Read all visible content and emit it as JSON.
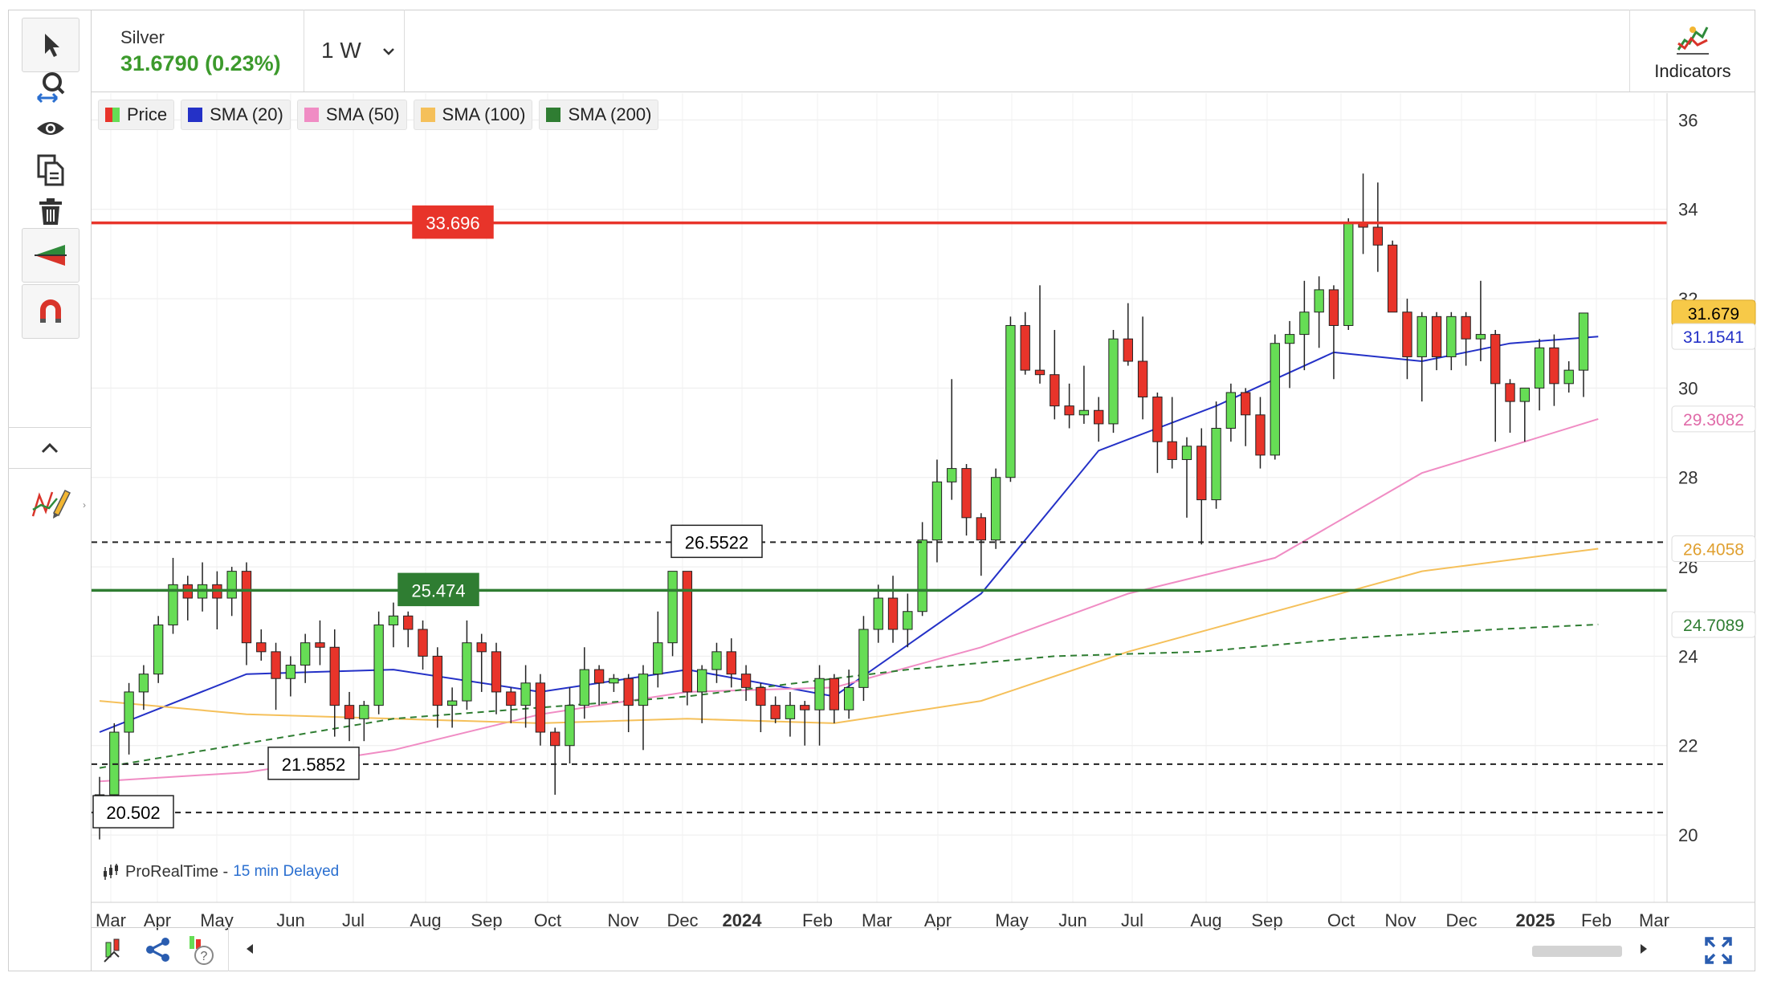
{
  "symbol": {
    "name": "Silver",
    "price_line": "31.6790 (0.23%)"
  },
  "timeframe": {
    "label": "1 W"
  },
  "indicators_button": {
    "label": "Indicators"
  },
  "tools": [
    "pointer-icon",
    "zoom-icon",
    "eye-icon",
    "copy-icon",
    "trash-icon",
    "chart-type-icon",
    "magnet-icon",
    "collapse-icon",
    "drawing-icon"
  ],
  "watermark": {
    "brand": "ProRealTime -",
    "delay": "15 min Delayed"
  },
  "colors": {
    "up": "#66dd55",
    "down": "#e8342a",
    "sma20": "#2431c7",
    "sma50": "#f08cc4",
    "sma100": "#f5c05a",
    "sma200": "#2f7d32",
    "resistance": "#e8342a",
    "support": "#2f7d32"
  },
  "chart_data": {
    "type": "candlestick",
    "ylim": [
      18.6,
      36.6
    ],
    "y_ticks": [
      20,
      22,
      24,
      26,
      28,
      30,
      32,
      34,
      36
    ],
    "x_labels": [
      "Mar",
      "Apr",
      "May",
      "Jun",
      "Jul",
      "Aug",
      "Sep",
      "Oct",
      "Nov",
      "Dec",
      "2024",
      "Feb",
      "Mar",
      "Apr",
      "May",
      "Jun",
      "Jul",
      "Aug",
      "Sep",
      "Oct",
      "Nov",
      "Dec",
      "2025",
      "Feb",
      "Mar"
    ],
    "legend": [
      {
        "label": "Price",
        "swatch": "price"
      },
      {
        "label": "SMA (20)",
        "color": "#2431c7"
      },
      {
        "label": "SMA (50)",
        "color": "#f08cc4"
      },
      {
        "label": "SMA (100)",
        "color": "#f5c05a"
      },
      {
        "label": "SMA (200)",
        "color": "#2f7d32"
      }
    ],
    "horizontal_lines": [
      {
        "value": 33.696,
        "label": "33.696",
        "style": "solid",
        "color": "#e8342a"
      },
      {
        "value": 25.474,
        "label": "25.474",
        "style": "solid",
        "color": "#2f7d32"
      },
      {
        "value": 26.5522,
        "label": "26.5522",
        "style": "dashed",
        "color": "#222222"
      },
      {
        "value": 21.5852,
        "label": "21.5852",
        "style": "dashed",
        "color": "#222222"
      },
      {
        "value": 20.502,
        "label": "20.502",
        "style": "dashed",
        "color": "#222222"
      }
    ],
    "axis_badges": [
      {
        "value": 31.679,
        "label": "31.679",
        "bg": "#f7c948",
        "fg": "#000000"
      },
      {
        "value": 31.1541,
        "label": "31.1541",
        "bg": "#ffffff",
        "fg": "#2431c7"
      },
      {
        "value": 29.3082,
        "label": "29.3082",
        "bg": "#ffffff",
        "fg": "#e06aa8"
      },
      {
        "value": 26.4058,
        "label": "26.4058",
        "bg": "#ffffff",
        "fg": "#e0a030"
      },
      {
        "value": 24.7089,
        "label": "24.7089",
        "bg": "#ffffff",
        "fg": "#2f7d32"
      }
    ],
    "series": [
      {
        "name": "Price",
        "type": "ohlc",
        "values": [
          [
            20.5,
            21.3,
            19.9,
            20.9
          ],
          [
            20.9,
            22.5,
            20.7,
            22.3
          ],
          [
            22.3,
            23.4,
            21.8,
            23.2
          ],
          [
            23.2,
            23.8,
            22.8,
            23.6
          ],
          [
            23.6,
            24.9,
            23.4,
            24.7
          ],
          [
            24.7,
            26.2,
            24.5,
            25.6
          ],
          [
            25.6,
            25.8,
            24.8,
            25.3
          ],
          [
            25.3,
            26.1,
            25.0,
            25.6
          ],
          [
            25.6,
            25.9,
            24.6,
            25.3
          ],
          [
            25.3,
            26.0,
            24.9,
            25.9
          ],
          [
            25.9,
            26.1,
            23.8,
            24.3
          ],
          [
            24.3,
            24.6,
            23.9,
            24.1
          ],
          [
            24.1,
            24.3,
            22.8,
            23.5
          ],
          [
            23.5,
            24.0,
            23.1,
            23.8
          ],
          [
            23.8,
            24.5,
            23.4,
            24.3
          ],
          [
            24.3,
            24.8,
            23.8,
            24.2
          ],
          [
            24.2,
            24.6,
            22.2,
            22.9
          ],
          [
            22.9,
            23.2,
            22.1,
            22.6
          ],
          [
            22.6,
            23.0,
            22.1,
            22.9
          ],
          [
            22.9,
            25.0,
            22.7,
            24.7
          ],
          [
            24.7,
            25.2,
            24.2,
            24.9
          ],
          [
            24.9,
            25.0,
            24.2,
            24.6
          ],
          [
            24.6,
            24.8,
            23.7,
            24.0
          ],
          [
            24.0,
            24.2,
            22.4,
            22.9
          ],
          [
            22.9,
            23.3,
            22.4,
            23.0
          ],
          [
            23.0,
            24.8,
            22.8,
            24.3
          ],
          [
            24.3,
            24.5,
            23.2,
            24.1
          ],
          [
            24.1,
            24.3,
            22.7,
            23.2
          ],
          [
            23.2,
            23.3,
            22.5,
            22.9
          ],
          [
            22.9,
            23.8,
            22.4,
            23.4
          ],
          [
            23.4,
            23.6,
            22.0,
            22.3
          ],
          [
            22.3,
            22.4,
            20.9,
            22.0
          ],
          [
            22.0,
            23.3,
            21.6,
            22.9
          ],
          [
            22.9,
            24.2,
            22.6,
            23.7
          ],
          [
            23.7,
            23.8,
            22.9,
            23.4
          ],
          [
            23.4,
            23.6,
            23.2,
            23.5
          ],
          [
            23.5,
            23.6,
            22.3,
            22.9
          ],
          [
            22.9,
            23.8,
            21.9,
            23.6
          ],
          [
            23.6,
            25.0,
            23.3,
            24.3
          ],
          [
            24.3,
            25.9,
            24.0,
            25.9
          ],
          [
            25.9,
            25.9,
            22.9,
            23.2
          ],
          [
            23.2,
            23.8,
            22.5,
            23.7
          ],
          [
            23.7,
            24.3,
            23.4,
            24.1
          ],
          [
            24.1,
            24.4,
            23.3,
            23.6
          ],
          [
            23.6,
            23.8,
            23.0,
            23.3
          ],
          [
            23.3,
            23.4,
            22.3,
            22.9
          ],
          [
            22.9,
            23.1,
            22.5,
            22.6
          ],
          [
            22.6,
            23.2,
            22.2,
            22.9
          ],
          [
            22.9,
            23.0,
            22.0,
            22.8
          ],
          [
            22.8,
            23.8,
            22.0,
            23.5
          ],
          [
            23.5,
            23.6,
            22.5,
            22.8
          ],
          [
            22.8,
            23.7,
            22.6,
            23.3
          ],
          [
            23.3,
            24.9,
            23.0,
            24.6
          ],
          [
            24.6,
            25.6,
            24.3,
            25.3
          ],
          [
            25.3,
            25.8,
            24.3,
            24.6
          ],
          [
            24.6,
            25.4,
            24.2,
            25.0
          ],
          [
            25.0,
            27.0,
            24.9,
            26.6
          ],
          [
            26.6,
            28.4,
            26.1,
            27.9
          ],
          [
            27.9,
            30.2,
            27.5,
            28.2
          ],
          [
            28.2,
            28.3,
            26.7,
            27.1
          ],
          [
            27.1,
            27.2,
            25.8,
            26.6
          ],
          [
            26.6,
            28.2,
            26.4,
            28.0
          ],
          [
            28.0,
            31.6,
            27.9,
            31.4
          ],
          [
            31.4,
            31.7,
            30.3,
            30.4
          ],
          [
            30.4,
            32.3,
            30.1,
            30.3
          ],
          [
            30.3,
            31.3,
            29.3,
            29.6
          ],
          [
            29.6,
            30.1,
            29.1,
            29.4
          ],
          [
            29.4,
            30.5,
            29.2,
            29.5
          ],
          [
            29.5,
            29.8,
            28.8,
            29.2
          ],
          [
            29.2,
            31.3,
            29.0,
            31.1
          ],
          [
            31.1,
            31.9,
            30.5,
            30.6
          ],
          [
            30.6,
            31.6,
            29.3,
            29.8
          ],
          [
            29.8,
            29.9,
            28.1,
            28.8
          ],
          [
            28.8,
            29.8,
            28.2,
            28.4
          ],
          [
            28.4,
            28.9,
            27.1,
            28.7
          ],
          [
            28.7,
            29.1,
            26.5,
            27.5
          ],
          [
            27.5,
            29.7,
            27.3,
            29.1
          ],
          [
            29.1,
            30.1,
            28.8,
            29.9
          ],
          [
            29.9,
            30.0,
            28.7,
            29.4
          ],
          [
            29.4,
            29.8,
            28.2,
            28.5
          ],
          [
            28.5,
            31.2,
            28.4,
            31.0
          ],
          [
            31.0,
            31.5,
            30.0,
            31.2
          ],
          [
            31.2,
            32.4,
            30.4,
            31.7
          ],
          [
            31.7,
            32.5,
            30.9,
            32.2
          ],
          [
            32.2,
            32.3,
            30.2,
            31.4
          ],
          [
            31.4,
            33.8,
            31.3,
            33.7
          ],
          [
            33.7,
            34.8,
            33.0,
            33.6
          ],
          [
            33.6,
            34.6,
            32.6,
            33.2
          ],
          [
            33.2,
            33.3,
            32.0,
            31.7
          ],
          [
            31.7,
            32.0,
            30.2,
            30.7
          ],
          [
            30.7,
            31.7,
            29.7,
            31.6
          ],
          [
            31.6,
            31.7,
            30.4,
            30.7
          ],
          [
            30.7,
            31.7,
            30.4,
            31.6
          ],
          [
            31.6,
            31.7,
            30.5,
            31.1
          ],
          [
            31.1,
            32.4,
            30.6,
            31.2
          ],
          [
            31.2,
            31.3,
            28.8,
            30.1
          ],
          [
            30.1,
            30.2,
            29.0,
            29.7
          ],
          [
            29.7,
            30.0,
            28.8,
            30.0
          ],
          [
            30.0,
            31.1,
            29.5,
            30.9
          ],
          [
            30.9,
            31.2,
            29.6,
            30.1
          ],
          [
            30.1,
            30.6,
            29.9,
            30.4
          ],
          [
            30.4,
            31.6,
            29.8,
            31.679
          ]
        ]
      },
      {
        "name": "SMA (20)",
        "values": [
          [
            0,
            22.3
          ],
          [
            10,
            23.6
          ],
          [
            20,
            23.7
          ],
          [
            30,
            23.2
          ],
          [
            40,
            23.7
          ],
          [
            50,
            23.1
          ],
          [
            60,
            25.4
          ],
          [
            68,
            28.6
          ],
          [
            76,
            29.6
          ],
          [
            84,
            30.8
          ],
          [
            90,
            30.6
          ],
          [
            96,
            31.0
          ],
          [
            102,
            31.1541
          ]
        ]
      },
      {
        "name": "SMA (50)",
        "values": [
          [
            0,
            21.2
          ],
          [
            10,
            21.4
          ],
          [
            20,
            21.9
          ],
          [
            30,
            22.7
          ],
          [
            40,
            23.2
          ],
          [
            50,
            23.3
          ],
          [
            60,
            24.2
          ],
          [
            70,
            25.4
          ],
          [
            80,
            26.2
          ],
          [
            90,
            28.1
          ],
          [
            96,
            28.7
          ],
          [
            102,
            29.3082
          ]
        ]
      },
      {
        "name": "SMA (100)",
        "values": [
          [
            0,
            23.0
          ],
          [
            10,
            22.7
          ],
          [
            20,
            22.6
          ],
          [
            30,
            22.5
          ],
          [
            40,
            22.6
          ],
          [
            50,
            22.5
          ],
          [
            60,
            23.0
          ],
          [
            70,
            24.1
          ],
          [
            80,
            25.0
          ],
          [
            90,
            25.9
          ],
          [
            102,
            26.4058
          ]
        ]
      },
      {
        "name": "SMA (200)",
        "values": [
          [
            0,
            21.5
          ],
          [
            20,
            22.6
          ],
          [
            40,
            23.1
          ],
          [
            55,
            23.7
          ],
          [
            65,
            24.0
          ],
          [
            75,
            24.1
          ],
          [
            85,
            24.4
          ],
          [
            95,
            24.6
          ],
          [
            102,
            24.7089
          ]
        ]
      }
    ]
  }
}
